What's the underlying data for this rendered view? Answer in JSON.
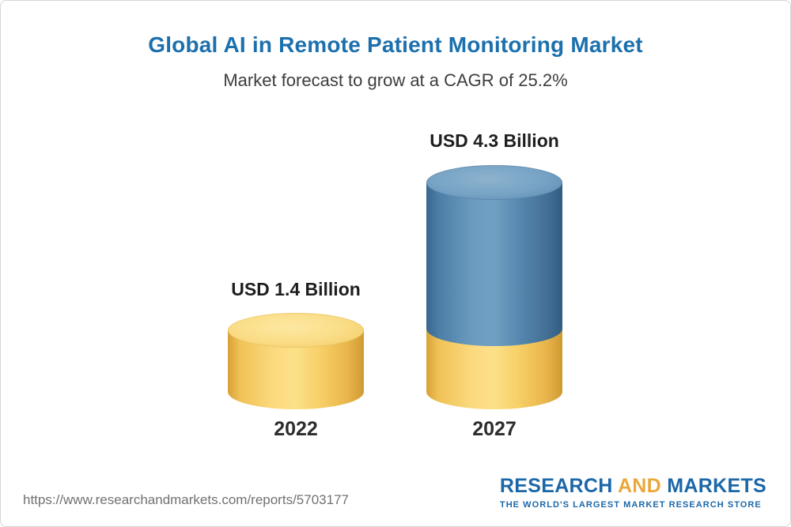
{
  "header": {
    "title": "Global AI in Remote Patient Monitoring Market",
    "subtitle": "Market forecast to grow at a CAGR of 25.2%"
  },
  "chart_data": {
    "type": "bar",
    "variant": "3d-cylinder",
    "title": "Global AI in Remote Patient Monitoring Market",
    "subtitle": "Market forecast to grow at a CAGR of 25.2%",
    "unit": "USD Billion",
    "cagr_percent": 25.2,
    "categories": [
      "2022",
      "2027"
    ],
    "values": [
      1.4,
      4.3
    ],
    "value_labels": [
      "USD 1.4 Billion",
      "USD 4.3 Billion"
    ],
    "legend": "none",
    "grid": false,
    "colors": {
      "gold_bar": "#f7cf66",
      "blue_bar": "#4d80a8",
      "title_blue": "#1c70ad"
    }
  },
  "footer": {
    "url": "https://www.researchandmarkets.com/reports/5703177",
    "logo": {
      "research": "RESEARCH",
      "and": "AND",
      "markets": "MARKETS",
      "tagline": "THE WORLD'S LARGEST MARKET RESEARCH STORE"
    }
  }
}
